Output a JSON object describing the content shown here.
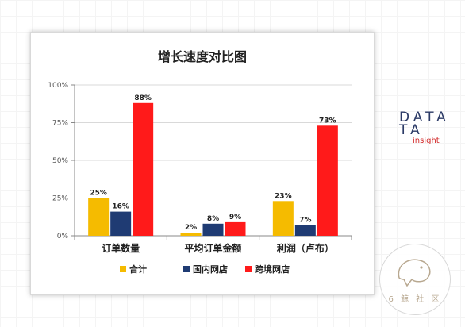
{
  "chart_data": {
    "type": "bar",
    "title": "增长速度对比图",
    "categories": [
      "订单数量",
      "平均订单金额",
      "利润（卢布）"
    ],
    "series": [
      {
        "name": "合计",
        "values": [
          25,
          2,
          23
        ],
        "labels": [
          "25%",
          "2%",
          "23%"
        ],
        "color": "#f5bb00"
      },
      {
        "name": "国内网店",
        "values": [
          16,
          8,
          7
        ],
        "labels": [
          "16%",
          "8%",
          "7%"
        ],
        "color": "#1f3b73"
      },
      {
        "name": "跨境网店",
        "values": [
          88,
          9,
          73
        ],
        "labels": [
          "88%",
          "9%",
          "73%"
        ],
        "color": "#ff1a1a"
      }
    ],
    "ylim": [
      0,
      100
    ],
    "yticks": [
      0,
      25,
      50,
      75,
      100
    ],
    "ytick_labels": [
      "0%",
      "25%",
      "50%",
      "75%",
      "100%"
    ],
    "grid": true,
    "legend_position": "bottom"
  },
  "brand": {
    "line1": "DATA",
    "line2": "TA",
    "sub": "insight"
  },
  "watermark": {
    "text": "6 鲸 社 区"
  }
}
